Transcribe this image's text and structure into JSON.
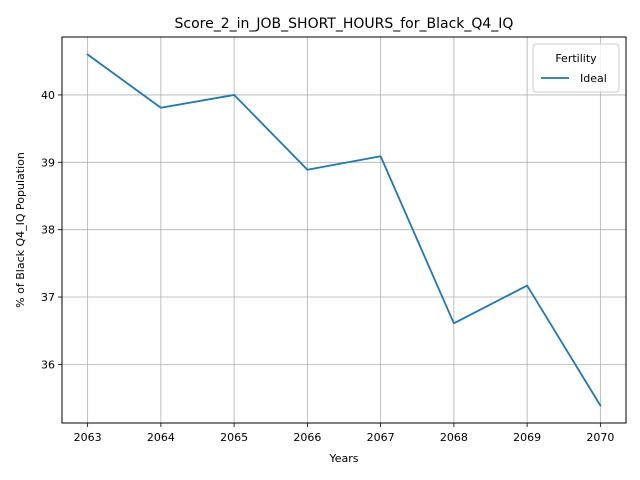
{
  "chart_data": {
    "type": "line",
    "title": "Score_2_in_JOB_SHORT_HOURS_for_Black_Q4_IQ",
    "xlabel": "Years",
    "ylabel": "% of Black Q4_IQ Population",
    "x": [
      2063,
      2064,
      2065,
      2066,
      2067,
      2068,
      2069,
      2070
    ],
    "series": [
      {
        "name": "Ideal",
        "color": "#1f77b4",
        "values": [
          40.6,
          39.81,
          40.0,
          38.89,
          39.09,
          36.61,
          37.17,
          35.39
        ]
      }
    ],
    "xticks": [
      "2063",
      "2064",
      "2065",
      "2066",
      "2067",
      "2068",
      "2069",
      "2070"
    ],
    "yticks": [
      "36",
      "37",
      "38",
      "39",
      "40"
    ],
    "xlim": [
      2062.65,
      2070.35
    ],
    "ylim": [
      35.13,
      40.86
    ],
    "grid": true,
    "legend": {
      "title": "Fertility",
      "position": "top-right"
    }
  }
}
